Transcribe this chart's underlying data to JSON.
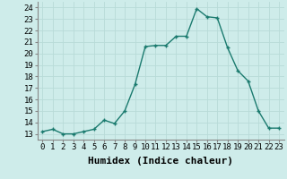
{
  "x": [
    0,
    1,
    2,
    3,
    4,
    5,
    6,
    7,
    8,
    9,
    10,
    11,
    12,
    13,
    14,
    15,
    16,
    17,
    18,
    19,
    20,
    21,
    22,
    23
  ],
  "y": [
    13.2,
    13.4,
    13.0,
    13.0,
    13.2,
    13.4,
    14.2,
    13.9,
    15.0,
    17.3,
    20.6,
    20.7,
    20.7,
    21.5,
    21.5,
    23.9,
    23.2,
    23.1,
    20.5,
    18.5,
    17.6,
    15.0,
    13.5,
    13.5
  ],
  "line_color": "#1a7a6e",
  "marker": "+",
  "marker_size": 3,
  "bg_color": "#ceecea",
  "grid_color": "#b8dbd8",
  "xlabel": "Humidex (Indice chaleur)",
  "xlim": [
    -0.5,
    23.5
  ],
  "ylim": [
    12.5,
    24.5
  ],
  "xticks": [
    0,
    1,
    2,
    3,
    4,
    5,
    6,
    7,
    8,
    9,
    10,
    11,
    12,
    13,
    14,
    15,
    16,
    17,
    18,
    19,
    20,
    21,
    22,
    23
  ],
  "yticks": [
    13,
    14,
    15,
    16,
    17,
    18,
    19,
    20,
    21,
    22,
    23,
    24
  ],
  "tick_fontsize": 6.5,
  "xlabel_fontsize": 8,
  "line_width": 1.0
}
